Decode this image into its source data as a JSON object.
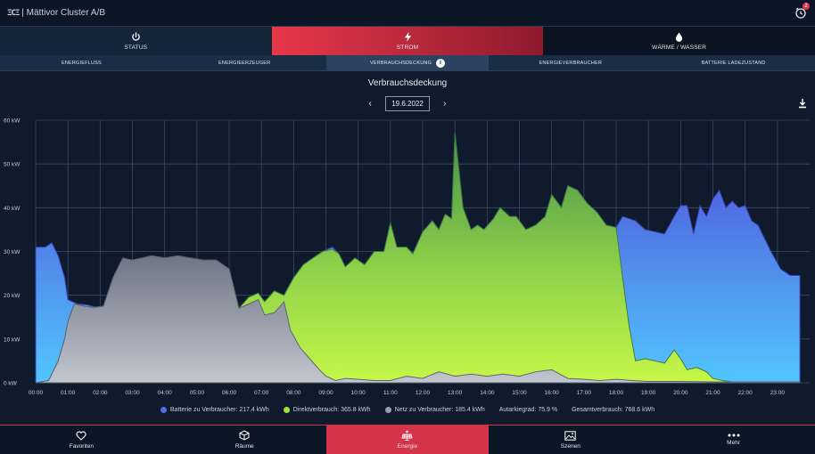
{
  "app": {
    "logo": "ΞCΞ",
    "title": "| Mättivor Cluster A/B",
    "notification_count": "2"
  },
  "main_tabs": [
    {
      "label": "STATUS",
      "icon": "power-icon"
    },
    {
      "label": "STROM",
      "icon": "bolt-icon",
      "active": true
    },
    {
      "label": "WÄRME / WASSER",
      "icon": "drop-icon"
    }
  ],
  "sub_tabs": [
    {
      "label": "ENERGIEFLUSS"
    },
    {
      "label": "ENERGIEERZEUGER"
    },
    {
      "label": "VERBRAUCHSDECKUNG",
      "active": true,
      "info": "i"
    },
    {
      "label": "ENERGIEVERBRAUCHER"
    },
    {
      "label": "BATTERIE LADEZUSTAND"
    }
  ],
  "chart_header": {
    "title": "Verbrauchsdeckung",
    "date": "19.6.2022",
    "prev": "‹",
    "next": "›"
  },
  "chart_data": {
    "type": "area",
    "title": "Verbrauchsdeckung",
    "x_ticks": [
      "00:00",
      "01:00",
      "02:00",
      "03:00",
      "04:00",
      "05:00",
      "06:00",
      "07:00",
      "08:00",
      "09:00",
      "10:00",
      "11:00",
      "12:00",
      "13:00",
      "14:00",
      "15:00",
      "16:00",
      "17:00",
      "18:00",
      "19:00",
      "20:00",
      "21:00",
      "22:00",
      "23:00"
    ],
    "y_ticks": [
      "0 kW",
      "10 kW",
      "20 kW",
      "30 kW",
      "40 kW",
      "50 kW",
      "60 kW"
    ],
    "ylim": [
      0,
      60
    ],
    "xlim": [
      0,
      24
    ],
    "stacking": "overlaid",
    "colors": {
      "batterie": "#4f5fe0",
      "batterie_light": "#55b9ff",
      "direkt": "#b8f04a",
      "direkt_dark": "#4a9c4a",
      "netz": "#7c8392",
      "netz_light": "#b7bcc6"
    },
    "series": [
      {
        "name": "Batterie zu Verbraucher",
        "key": "batterie",
        "points": [
          [
            0,
            31
          ],
          [
            0.3,
            31
          ],
          [
            0.5,
            32
          ],
          [
            0.7,
            29
          ],
          [
            0.9,
            24
          ],
          [
            1.0,
            19
          ],
          [
            1.3,
            18
          ],
          [
            1.6,
            17.8
          ],
          [
            1.9,
            17.2
          ],
          [
            2.1,
            17.5
          ],
          [
            2.4,
            24
          ],
          [
            2.7,
            28.5
          ],
          [
            3.0,
            28
          ],
          [
            3.3,
            28.5
          ],
          [
            3.6,
            29
          ],
          [
            4.0,
            28.5
          ],
          [
            4.4,
            29
          ],
          [
            4.8,
            28.5
          ],
          [
            5.2,
            28
          ],
          [
            5.6,
            28
          ],
          [
            6.0,
            26
          ],
          [
            6.3,
            17
          ],
          [
            6.6,
            19.5
          ],
          [
            6.9,
            20.5
          ],
          [
            7.1,
            18.5
          ],
          [
            7.4,
            21
          ],
          [
            7.7,
            20
          ],
          [
            8.0,
            24
          ],
          [
            8.3,
            27
          ],
          [
            8.6,
            28.5
          ],
          [
            8.9,
            30
          ],
          [
            9.2,
            31
          ],
          [
            9.4,
            29.5
          ],
          [
            9.6,
            26.5
          ],
          [
            9.9,
            28.5
          ],
          [
            10.2,
            27
          ],
          [
            10.5,
            30
          ],
          [
            10.8,
            30
          ],
          [
            11.0,
            36.5
          ],
          [
            11.2,
            31
          ],
          [
            11.5,
            31
          ],
          [
            11.7,
            29.5
          ],
          [
            12.0,
            34.5
          ],
          [
            12.3,
            37
          ],
          [
            12.5,
            35
          ],
          [
            12.7,
            38.5
          ],
          [
            12.9,
            37.5
          ],
          [
            13.0,
            57
          ],
          [
            13.25,
            40
          ],
          [
            13.5,
            35
          ],
          [
            13.7,
            36
          ],
          [
            13.9,
            35
          ],
          [
            14.2,
            37.5
          ],
          [
            14.4,
            40
          ],
          [
            14.7,
            38
          ],
          [
            14.9,
            38
          ],
          [
            15.2,
            35
          ],
          [
            15.5,
            36
          ],
          [
            15.8,
            38
          ],
          [
            16.0,
            43
          ],
          [
            16.3,
            40
          ],
          [
            16.5,
            45
          ],
          [
            16.8,
            44
          ],
          [
            17.1,
            41
          ],
          [
            17.4,
            39
          ],
          [
            17.7,
            36
          ],
          [
            18.0,
            35.5
          ],
          [
            18.2,
            38
          ],
          [
            18.6,
            37
          ],
          [
            18.9,
            35
          ],
          [
            19.2,
            34.5
          ],
          [
            19.5,
            34
          ],
          [
            19.8,
            38
          ],
          [
            20.0,
            40.5
          ],
          [
            20.2,
            40.5
          ],
          [
            20.4,
            34
          ],
          [
            20.6,
            40.5
          ],
          [
            20.8,
            38
          ],
          [
            21.0,
            42
          ],
          [
            21.2,
            44
          ],
          [
            21.4,
            40
          ],
          [
            21.6,
            41.5
          ],
          [
            21.8,
            40
          ],
          [
            22.0,
            40.5
          ],
          [
            22.2,
            37
          ],
          [
            22.4,
            36
          ],
          [
            22.6,
            33
          ],
          [
            22.8,
            30
          ],
          [
            23.1,
            26
          ],
          [
            23.4,
            24.5
          ],
          [
            23.7,
            24.5
          ]
        ]
      },
      {
        "name": "Direktverbrauch",
        "key": "direkt",
        "points": [
          [
            0,
            0
          ],
          [
            0.4,
            0.5
          ],
          [
            0.7,
            5
          ],
          [
            0.9,
            10
          ],
          [
            1.0,
            14
          ],
          [
            1.2,
            18
          ],
          [
            1.5,
            17.5
          ],
          [
            1.8,
            17.2
          ],
          [
            2.1,
            17.5
          ],
          [
            2.4,
            24
          ],
          [
            2.7,
            28.5
          ],
          [
            3.0,
            28
          ],
          [
            3.3,
            28.5
          ],
          [
            3.6,
            29
          ],
          [
            4.0,
            28.5
          ],
          [
            4.4,
            29
          ],
          [
            4.8,
            28.5
          ],
          [
            5.2,
            28
          ],
          [
            5.6,
            28
          ],
          [
            6.0,
            26
          ],
          [
            6.3,
            17
          ],
          [
            6.6,
            19.5
          ],
          [
            6.9,
            20.5
          ],
          [
            7.1,
            18.5
          ],
          [
            7.4,
            21
          ],
          [
            7.7,
            20
          ],
          [
            8.0,
            24
          ],
          [
            8.3,
            27
          ],
          [
            8.6,
            28.5
          ],
          [
            8.9,
            30
          ],
          [
            9.2,
            30.5
          ],
          [
            9.4,
            29.5
          ],
          [
            9.6,
            26.5
          ],
          [
            9.9,
            28.5
          ],
          [
            10.2,
            27
          ],
          [
            10.5,
            30
          ],
          [
            10.8,
            30
          ],
          [
            11.0,
            36.5
          ],
          [
            11.2,
            31
          ],
          [
            11.5,
            31
          ],
          [
            11.7,
            29.5
          ],
          [
            12.0,
            34.5
          ],
          [
            12.3,
            37
          ],
          [
            12.5,
            35
          ],
          [
            12.7,
            38.5
          ],
          [
            12.9,
            37.5
          ],
          [
            13.0,
            57
          ],
          [
            13.25,
            40
          ],
          [
            13.5,
            35
          ],
          [
            13.7,
            36
          ],
          [
            13.9,
            35
          ],
          [
            14.2,
            37.5
          ],
          [
            14.4,
            40
          ],
          [
            14.7,
            38
          ],
          [
            14.9,
            38
          ],
          [
            15.2,
            35
          ],
          [
            15.5,
            36
          ],
          [
            15.8,
            38
          ],
          [
            16.0,
            43
          ],
          [
            16.3,
            40
          ],
          [
            16.5,
            45
          ],
          [
            16.8,
            44
          ],
          [
            17.1,
            41
          ],
          [
            17.4,
            39
          ],
          [
            17.7,
            36
          ],
          [
            18.0,
            35.5
          ],
          [
            18.2,
            24
          ],
          [
            18.4,
            13
          ],
          [
            18.6,
            5
          ],
          [
            18.9,
            5.5
          ],
          [
            19.2,
            5
          ],
          [
            19.5,
            4.5
          ],
          [
            19.8,
            7.5
          ],
          [
            20.0,
            5.5
          ],
          [
            20.2,
            3
          ],
          [
            20.5,
            3.5
          ],
          [
            20.8,
            2.5
          ],
          [
            21.0,
            1
          ],
          [
            21.3,
            0.5
          ],
          [
            21.6,
            0.2
          ],
          [
            22.0,
            0
          ],
          [
            23.7,
            0
          ]
        ]
      },
      {
        "name": "Netz zu Verbraucher",
        "key": "netz",
        "points": [
          [
            0,
            0
          ],
          [
            0.4,
            0.5
          ],
          [
            0.7,
            5
          ],
          [
            0.9,
            10
          ],
          [
            1.0,
            14
          ],
          [
            1.2,
            18
          ],
          [
            1.5,
            17.5
          ],
          [
            1.8,
            17.2
          ],
          [
            2.1,
            17.5
          ],
          [
            2.4,
            24
          ],
          [
            2.7,
            28.5
          ],
          [
            3.0,
            28
          ],
          [
            3.3,
            28.5
          ],
          [
            3.6,
            29
          ],
          [
            4.0,
            28.5
          ],
          [
            4.4,
            29
          ],
          [
            4.8,
            28.5
          ],
          [
            5.2,
            28
          ],
          [
            5.6,
            28
          ],
          [
            6.0,
            26
          ],
          [
            6.3,
            17
          ],
          [
            6.6,
            18
          ],
          [
            6.9,
            19
          ],
          [
            7.1,
            15.5
          ],
          [
            7.4,
            16
          ],
          [
            7.7,
            18.5
          ],
          [
            7.9,
            12
          ],
          [
            8.2,
            8
          ],
          [
            8.5,
            5.5
          ],
          [
            8.8,
            3
          ],
          [
            9.0,
            1.5
          ],
          [
            9.3,
            0.5
          ],
          [
            9.6,
            1
          ],
          [
            10.0,
            0.8
          ],
          [
            10.5,
            0.5
          ],
          [
            11.0,
            0.5
          ],
          [
            11.5,
            1.5
          ],
          [
            12.0,
            1
          ],
          [
            12.5,
            2.5
          ],
          [
            13.0,
            1.5
          ],
          [
            13.5,
            2
          ],
          [
            14.0,
            1.5
          ],
          [
            14.5,
            2
          ],
          [
            15.0,
            1.5
          ],
          [
            15.5,
            2.5
          ],
          [
            16.0,
            3
          ],
          [
            16.5,
            1
          ],
          [
            17.0,
            0.8
          ],
          [
            17.5,
            0.5
          ],
          [
            18.0,
            0.8
          ],
          [
            18.5,
            0.5
          ],
          [
            19.0,
            0.3
          ],
          [
            20.0,
            0.3
          ],
          [
            21.0,
            0.2
          ],
          [
            22.0,
            0.2
          ],
          [
            23.7,
            0.2
          ]
        ]
      }
    ]
  },
  "legend": [
    {
      "label": "Batterie zu Verbraucher: 217.4 kWh",
      "color": "#5868e8"
    },
    {
      "label": "Direktverbrauch: 365.8 kWh",
      "color": "#a6e03a"
    },
    {
      "label": "Netz zu Verbraucher: 185.4 kWh",
      "color": "#9aa0ab"
    }
  ],
  "summary": {
    "autarkie": "Autarkiegrad: 75.9 %",
    "gesamt": "Gesamtverbrauch: 768.6 kWh"
  },
  "bottom_nav": [
    {
      "label": "Favoriten",
      "icon": "heart-icon"
    },
    {
      "label": "Räume",
      "icon": "cube-icon"
    },
    {
      "label": "Energie",
      "icon": "solar-panel-icon",
      "active": true
    },
    {
      "label": "Szenen",
      "icon": "image-icon"
    },
    {
      "label": "Mehr",
      "icon": "more-icon"
    }
  ]
}
